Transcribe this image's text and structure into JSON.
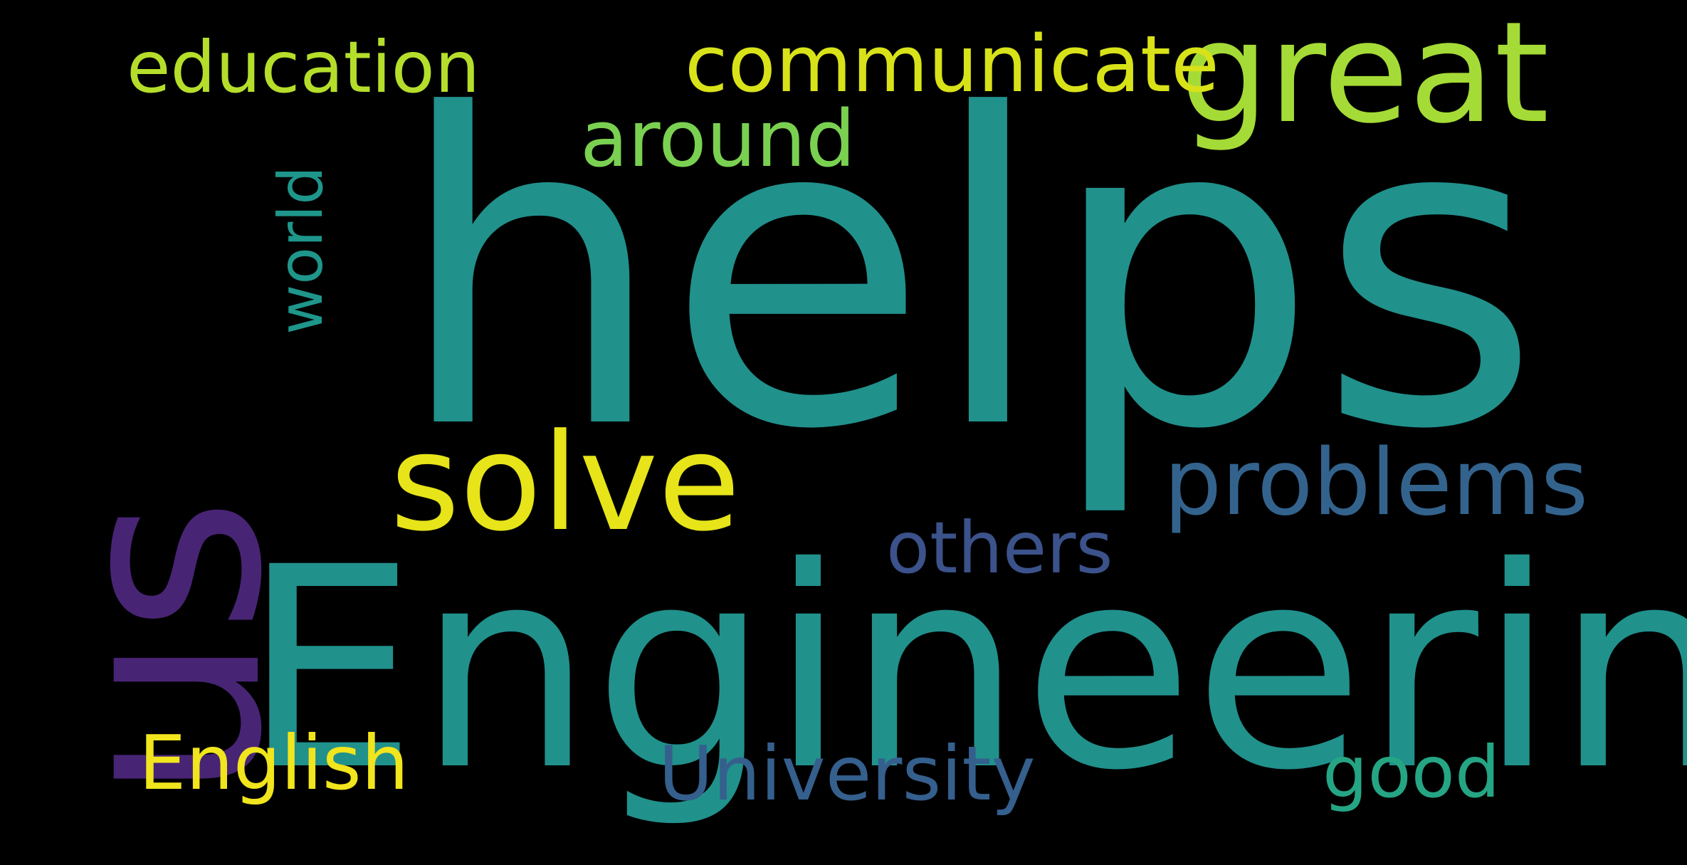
{
  "wordcloud": {
    "background": "#000000",
    "words": [
      {
        "key": "helps",
        "text": "helps",
        "color": "#21918c"
      },
      {
        "key": "engineering",
        "text": "Engineering",
        "color": "#21918c"
      },
      {
        "key": "us",
        "text": "us",
        "color": "#482475"
      },
      {
        "key": "solve",
        "text": "solve",
        "color": "#e7e419"
      },
      {
        "key": "great",
        "text": "great",
        "color": "#a5db36"
      },
      {
        "key": "problems",
        "text": "problems",
        "color": "#33638d"
      },
      {
        "key": "others",
        "text": "others",
        "color": "#3b528b"
      },
      {
        "key": "communicate",
        "text": "communicate",
        "color": "#d8e219"
      },
      {
        "key": "education",
        "text": "education",
        "color": "#b5de2b"
      },
      {
        "key": "around",
        "text": "around",
        "color": "#7ad151"
      },
      {
        "key": "world",
        "text": "world",
        "color": "#1f968b"
      },
      {
        "key": "english",
        "text": "English",
        "color": "#f1e51d"
      },
      {
        "key": "university",
        "text": "University",
        "color": "#355f8d"
      },
      {
        "key": "good",
        "text": "good",
        "color": "#25a584"
      }
    ]
  }
}
